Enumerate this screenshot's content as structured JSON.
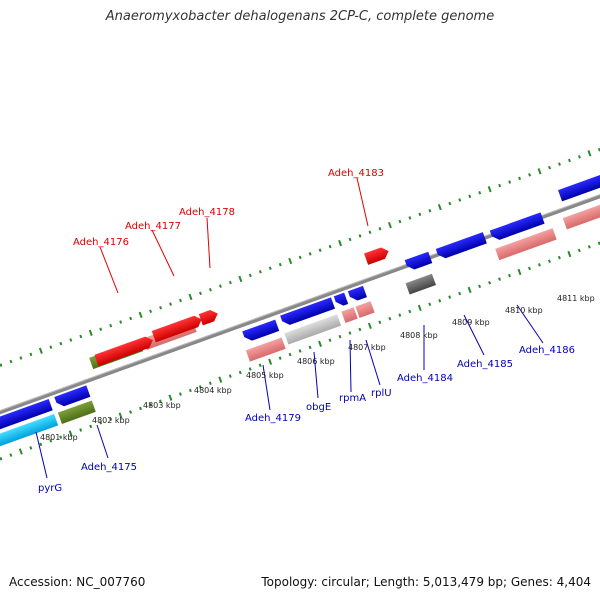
{
  "title": "Anaeromyxobacter dehalogenans 2CP-C, complete genome",
  "footer": {
    "accession": "Accession: NC_007760",
    "summary": "Topology: circular; Length: 5,013,479 bp; Genes: 4,404"
  },
  "colors": {
    "red": "#ee0000",
    "pink": "#ee8888",
    "blue": "#0000dd",
    "olive": "#6b8e23",
    "cyan": "#00bbee",
    "gray": "#bbbbbb",
    "darkgray": "#666666",
    "tick": "#2a8a2a"
  },
  "kbp_labels": [
    "4801 kbp",
    "4802 kbp",
    "4803 kbp",
    "4804 kbp",
    "4805 kbp",
    "4806 kbp",
    "4807 kbp",
    "4808 kbp",
    "4809 kbp",
    "4810 kbp",
    "4811 kbp"
  ],
  "gene_labels_top": [
    "Adeh_4176",
    "Adeh_4177",
    "Adeh_4178",
    "Adeh_4183"
  ],
  "gene_labels_bottom": [
    "pyrG",
    "Adeh_4175",
    "Adeh_4179",
    "obgE",
    "rpmA",
    "rplU",
    "Adeh_4184",
    "Adeh_4185",
    "Adeh_4186"
  ]
}
